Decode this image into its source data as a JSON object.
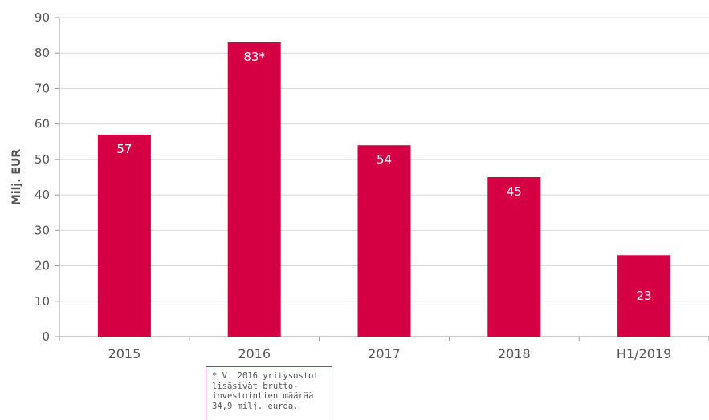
{
  "chart_data": {
    "type": "bar",
    "categories": [
      "2015",
      "2016",
      "2017",
      "2018",
      "H1/2019"
    ],
    "values": [
      57,
      83,
      54,
      45,
      23
    ],
    "value_labels": [
      "57",
      "83*",
      "54",
      "45",
      "23"
    ],
    "title": "",
    "xlabel": "",
    "ylabel": "Milj. EUR",
    "ylim": [
      0,
      90
    ],
    "yticks": [
      0,
      10,
      20,
      30,
      40,
      50,
      60,
      70,
      80,
      90
    ],
    "grid": true,
    "bar_color": "#d50043",
    "annotation": "* V. 2016 yritysostot\nlisäsivät brutto-\ninvestointien määrää\n34,9 milj. euroa."
  }
}
